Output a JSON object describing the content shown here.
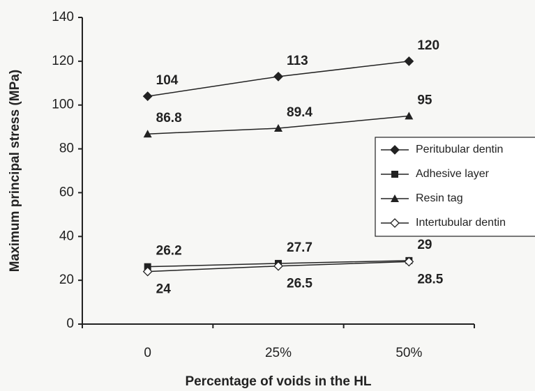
{
  "chart_data": {
    "type": "line",
    "categories": [
      "0",
      "25%",
      "50%"
    ],
    "xlabel": "Percentage of voids in the HL",
    "ylabel": "Maximum principal stress (MPa)",
    "ylim": [
      0,
      140
    ],
    "yticks": [
      0,
      20,
      40,
      60,
      80,
      100,
      120,
      140
    ],
    "legend": "right",
    "series": [
      {
        "name": "Peritubular dentin",
        "color": "#222222",
        "marker": "diamond",
        "values": [
          104,
          113,
          120
        ]
      },
      {
        "name": "Adhesive layer",
        "color": "#222222",
        "marker": "square",
        "values": [
          26.2,
          27.7,
          29
        ]
      },
      {
        "name": "Resin tag",
        "color": "#222222",
        "marker": "triangle",
        "values": [
          86.8,
          89.4,
          95
        ]
      },
      {
        "name": "Intertubular dentin",
        "color": "#222222",
        "marker": "diamond-open",
        "values": [
          24,
          26.5,
          28.5
        ]
      }
    ]
  }
}
